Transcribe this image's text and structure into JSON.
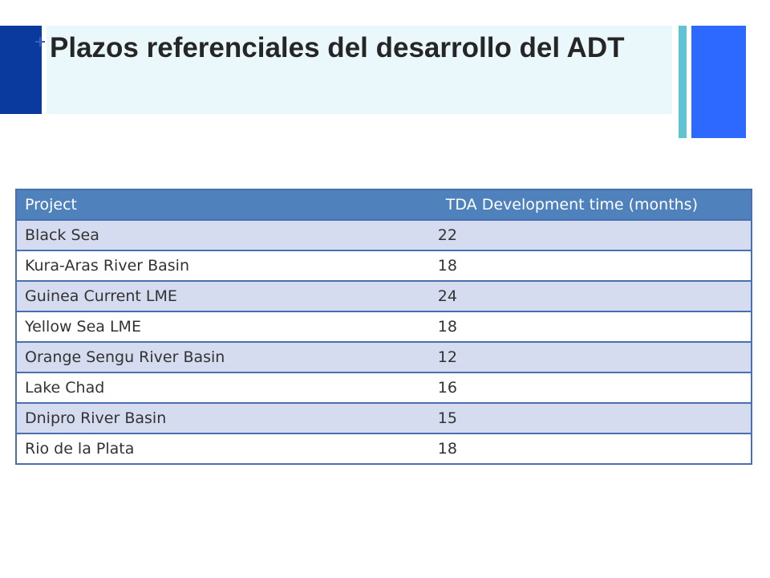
{
  "slide": {
    "title": "Plazos referenciales del desarrollo del ADT"
  },
  "table": {
    "headers": [
      "Project",
      "TDA Development time (months)"
    ],
    "rows": [
      {
        "project": "Black Sea",
        "time": "22"
      },
      {
        "project": "Kura-Aras River Basin",
        "time": "18"
      },
      {
        "project": "Guinea Current LME",
        "time": "24"
      },
      {
        "project": "Yellow Sea LME",
        "time": "18"
      },
      {
        "project": "Orange Sengu River Basin",
        "time": "12"
      },
      {
        "project": "Lake Chad",
        "time": "16"
      },
      {
        "project": "Dnipro River Basin",
        "time": "15"
      },
      {
        "project": "Rio de la Plata",
        "time": "18"
      }
    ]
  },
  "colors": {
    "header": "#4f81bd",
    "row_band": "#d5dcf0",
    "accent_dark": "#0b3a9f",
    "accent_teal": "#5fc3d1",
    "accent_blue": "#2e69ff",
    "title_bg": "#eaf8fb"
  }
}
